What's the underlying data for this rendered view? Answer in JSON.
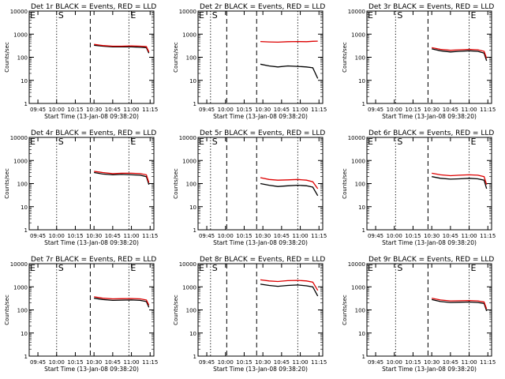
{
  "shared": {
    "ylabel": "Counts/sec",
    "xlabel": "Start Time (13-Jan-08 09:38:20)",
    "x_ticks": [
      "09:45",
      "10:00",
      "10:15",
      "10:30",
      "10:45",
      "11:00",
      "11:15"
    ],
    "y_ticks": [
      "1",
      "10",
      "100",
      "1000",
      "10000"
    ],
    "series_colors": {
      "Events": "#000000",
      "LLD": "#dd0000"
    }
  },
  "chart_data": [
    {
      "type": "line",
      "title": "Det 1r BLACK = Events, RED = LLD",
      "corner_label": "E",
      "markers": [
        {
          "time": "10:00",
          "style": "dotted",
          "label": "S"
        },
        {
          "time": "10:27",
          "style": "dashed",
          "label": ""
        },
        {
          "time": "10:58",
          "style": "dotted",
          "label": "E"
        }
      ],
      "xlim": [
        "09:38",
        "11:18"
      ],
      "ylim": [
        1,
        10000
      ],
      "yscale": "log",
      "series": [
        {
          "name": "Events",
          "color": "#000000",
          "points": [
            [
              "10:30",
              330
            ],
            [
              "10:37",
              300
            ],
            [
              "10:45",
              280
            ],
            [
              "10:52",
              280
            ],
            [
              "11:00",
              280
            ],
            [
              "11:07",
              270
            ],
            [
              "11:12",
              260
            ],
            [
              "11:14",
              150
            ]
          ]
        },
        {
          "name": "LLD",
          "color": "#dd0000",
          "points": [
            [
              "10:30",
              360
            ],
            [
              "10:37",
              320
            ],
            [
              "10:45",
              300
            ],
            [
              "10:52",
              300
            ],
            [
              "11:00",
              310
            ],
            [
              "11:07",
              300
            ],
            [
              "11:12",
              290
            ],
            [
              "11:14",
              170
            ]
          ]
        }
      ]
    },
    {
      "type": "line",
      "title": "Det 2r BLACK = Events, RED = LLD",
      "corner_label": "E",
      "markers": [
        {
          "time": "09:48",
          "style": "dotted",
          "label": "S"
        },
        {
          "time": "10:01",
          "style": "dashed",
          "label": ""
        },
        {
          "time": "10:25",
          "style": "dashed",
          "label": ""
        },
        {
          "time": "10:58",
          "style": "dotted",
          "label": ""
        }
      ],
      "xlim": [
        "09:38",
        "11:18"
      ],
      "ylim": [
        1,
        10000
      ],
      "yscale": "log",
      "series": [
        {
          "name": "Events",
          "color": "#000000",
          "points": [
            [
              "10:28",
              50
            ],
            [
              "10:35",
              42
            ],
            [
              "10:42",
              38
            ],
            [
              "10:50",
              42
            ],
            [
              "10:58",
              40
            ],
            [
              "11:05",
              38
            ],
            [
              "11:10",
              35
            ],
            [
              "11:14",
              12
            ]
          ]
        },
        {
          "name": "LLD",
          "color": "#dd0000",
          "points": [
            [
              "10:28",
              480
            ],
            [
              "10:35",
              460
            ],
            [
              "10:42",
              450
            ],
            [
              "10:50",
              470
            ],
            [
              "10:58",
              480
            ],
            [
              "11:05",
              470
            ],
            [
              "11:10",
              490
            ],
            [
              "11:14",
              500
            ]
          ]
        }
      ]
    },
    {
      "type": "line",
      "title": "Det 3r BLACK = Events, RED = LLD",
      "corner_label": "E",
      "markers": [
        {
          "time": "10:01",
          "style": "dotted",
          "label": "S"
        },
        {
          "time": "10:27",
          "style": "dashed",
          "label": ""
        },
        {
          "time": "11:00",
          "style": "dotted",
          "label": "E"
        }
      ],
      "xlim": [
        "09:38",
        "11:18"
      ],
      "ylim": [
        1,
        10000
      ],
      "yscale": "log",
      "series": [
        {
          "name": "Events",
          "color": "#000000",
          "points": [
            [
              "10:30",
              230
            ],
            [
              "10:37",
              190
            ],
            [
              "10:45",
              170
            ],
            [
              "10:52",
              180
            ],
            [
              "11:00",
              190
            ],
            [
              "11:07",
              180
            ],
            [
              "11:12",
              150
            ],
            [
              "11:14",
              70
            ]
          ]
        },
        {
          "name": "LLD",
          "color": "#dd0000",
          "points": [
            [
              "10:30",
              260
            ],
            [
              "10:37",
              220
            ],
            [
              "10:45",
              200
            ],
            [
              "10:52",
              210
            ],
            [
              "11:00",
              220
            ],
            [
              "11:07",
              210
            ],
            [
              "11:12",
              180
            ],
            [
              "11:14",
              90
            ]
          ]
        }
      ]
    },
    {
      "type": "line",
      "title": "Det 4r BLACK = Events, RED = LLD",
      "corner_label": "E",
      "markers": [
        {
          "time": "10:00",
          "style": "dotted",
          "label": "S"
        },
        {
          "time": "10:27",
          "style": "dashed",
          "label": ""
        },
        {
          "time": "10:58",
          "style": "dotted",
          "label": "E"
        }
      ],
      "xlim": [
        "09:38",
        "11:18"
      ],
      "ylim": [
        1,
        10000
      ],
      "yscale": "log",
      "series": [
        {
          "name": "Events",
          "color": "#000000",
          "points": [
            [
              "10:30",
              300
            ],
            [
              "10:37",
              260
            ],
            [
              "10:45",
              240
            ],
            [
              "10:52",
              250
            ],
            [
              "11:00",
              240
            ],
            [
              "11:07",
              230
            ],
            [
              "11:12",
              200
            ],
            [
              "11:14",
              90
            ]
          ]
        },
        {
          "name": "LLD",
          "color": "#dd0000",
          "points": [
            [
              "10:30",
              340
            ],
            [
              "10:37",
              300
            ],
            [
              "10:45",
              270
            ],
            [
              "10:52",
              280
            ],
            [
              "11:00",
              280
            ],
            [
              "11:07",
              270
            ],
            [
              "11:12",
              240
            ],
            [
              "11:14",
              110
            ]
          ]
        }
      ]
    },
    {
      "type": "line",
      "title": "Det 5r BLACK = Events, RED = LLD",
      "corner_label": "E",
      "markers": [
        {
          "time": "09:48",
          "style": "dotted",
          "label": "S"
        },
        {
          "time": "10:01",
          "style": "dashed",
          "label": ""
        },
        {
          "time": "10:25",
          "style": "dashed",
          "label": ""
        },
        {
          "time": "10:58",
          "style": "dotted",
          "label": ""
        }
      ],
      "xlim": [
        "09:38",
        "11:18"
      ],
      "ylim": [
        1,
        10000
      ],
      "yscale": "log",
      "series": [
        {
          "name": "Events",
          "color": "#000000",
          "points": [
            [
              "10:28",
              100
            ],
            [
              "10:35",
              85
            ],
            [
              "10:42",
              75
            ],
            [
              "10:50",
              80
            ],
            [
              "10:58",
              85
            ],
            [
              "11:05",
              80
            ],
            [
              "11:10",
              70
            ],
            [
              "11:14",
              30
            ]
          ]
        },
        {
          "name": "LLD",
          "color": "#dd0000",
          "points": [
            [
              "10:28",
              180
            ],
            [
              "10:35",
              150
            ],
            [
              "10:42",
              140
            ],
            [
              "10:50",
              145
            ],
            [
              "10:58",
              150
            ],
            [
              "11:05",
              140
            ],
            [
              "11:10",
              120
            ],
            [
              "11:14",
              60
            ]
          ]
        }
      ]
    },
    {
      "type": "line",
      "title": "Det 6r BLACK = Events, RED = LLD",
      "corner_label": "E",
      "markers": [
        {
          "time": "10:01",
          "style": "dotted",
          "label": "S"
        },
        {
          "time": "10:27",
          "style": "dashed",
          "label": ""
        },
        {
          "time": "11:00",
          "style": "dotted",
          "label": "E"
        }
      ],
      "xlim": [
        "09:38",
        "11:18"
      ],
      "ylim": [
        1,
        10000
      ],
      "yscale": "log",
      "series": [
        {
          "name": "Events",
          "color": "#000000",
          "points": [
            [
              "10:30",
              200
            ],
            [
              "10:37",
              170
            ],
            [
              "10:45",
              155
            ],
            [
              "10:52",
              160
            ],
            [
              "11:00",
              170
            ],
            [
              "11:07",
              160
            ],
            [
              "11:12",
              140
            ],
            [
              "11:14",
              60
            ]
          ]
        },
        {
          "name": "LLD",
          "color": "#dd0000",
          "points": [
            [
              "10:30",
              280
            ],
            [
              "10:37",
              240
            ],
            [
              "10:45",
              220
            ],
            [
              "10:52",
              230
            ],
            [
              "11:00",
              240
            ],
            [
              "11:07",
              230
            ],
            [
              "11:12",
              200
            ],
            [
              "11:14",
              90
            ]
          ]
        }
      ]
    },
    {
      "type": "line",
      "title": "Det 7r BLACK = Events, RED = LLD",
      "corner_label": "E",
      "markers": [
        {
          "time": "10:00",
          "style": "dotted",
          "label": "S"
        },
        {
          "time": "10:27",
          "style": "dashed",
          "label": ""
        },
        {
          "time": "10:58",
          "style": "dotted",
          "label": "E"
        }
      ],
      "xlim": [
        "09:38",
        "11:18"
      ],
      "ylim": [
        1,
        10000
      ],
      "yscale": "log",
      "series": [
        {
          "name": "Events",
          "color": "#000000",
          "points": [
            [
              "10:30",
              320
            ],
            [
              "10:37",
              280
            ],
            [
              "10:45",
              260
            ],
            [
              "10:52",
              265
            ],
            [
              "11:00",
              270
            ],
            [
              "11:07",
              260
            ],
            [
              "11:12",
              230
            ],
            [
              "11:14",
              130
            ]
          ]
        },
        {
          "name": "LLD",
          "color": "#dd0000",
          "points": [
            [
              "10:30",
              370
            ],
            [
              "10:37",
              320
            ],
            [
              "10:45",
              300
            ],
            [
              "10:52",
              305
            ],
            [
              "11:00",
              310
            ],
            [
              "11:07",
              300
            ],
            [
              "11:12",
              270
            ],
            [
              "11:14",
              160
            ]
          ]
        }
      ]
    },
    {
      "type": "line",
      "title": "Det 8r BLACK = Events, RED = LLD",
      "corner_label": "E",
      "markers": [
        {
          "time": "09:48",
          "style": "dotted",
          "label": "S"
        },
        {
          "time": "10:01",
          "style": "dashed",
          "label": ""
        },
        {
          "time": "10:25",
          "style": "dashed",
          "label": ""
        },
        {
          "time": "10:58",
          "style": "dotted",
          "label": ""
        }
      ],
      "xlim": [
        "09:38",
        "11:18"
      ],
      "ylim": [
        1,
        10000
      ],
      "yscale": "log",
      "series": [
        {
          "name": "Events",
          "color": "#000000",
          "points": [
            [
              "10:28",
              1300
            ],
            [
              "10:35",
              1150
            ],
            [
              "10:42",
              1050
            ],
            [
              "10:50",
              1150
            ],
            [
              "10:58",
              1200
            ],
            [
              "11:05",
              1100
            ],
            [
              "11:10",
              1000
            ],
            [
              "11:14",
              400
            ]
          ]
        },
        {
          "name": "LLD",
          "color": "#dd0000",
          "points": [
            [
              "10:28",
              2000
            ],
            [
              "10:35",
              1800
            ],
            [
              "10:42",
              1700
            ],
            [
              "10:50",
              1850
            ],
            [
              "10:58",
              1900
            ],
            [
              "11:05",
              1800
            ],
            [
              "11:10",
              1600
            ],
            [
              "11:14",
              700
            ]
          ]
        }
      ]
    },
    {
      "type": "line",
      "title": "Det 9r BLACK = Events, RED = LLD",
      "corner_label": "E",
      "markers": [
        {
          "time": "10:01",
          "style": "dotted",
          "label": "S"
        },
        {
          "time": "10:27",
          "style": "dashed",
          "label": ""
        },
        {
          "time": "11:00",
          "style": "dotted",
          "label": "E"
        }
      ],
      "xlim": [
        "09:38",
        "11:18"
      ],
      "ylim": [
        1,
        10000
      ],
      "yscale": "log",
      "series": [
        {
          "name": "Events",
          "color": "#000000",
          "points": [
            [
              "10:30",
              280
            ],
            [
              "10:37",
              230
            ],
            [
              "10:45",
              210
            ],
            [
              "10:52",
              215
            ],
            [
              "11:00",
              220
            ],
            [
              "11:07",
              210
            ],
            [
              "11:12",
              190
            ],
            [
              "11:14",
              90
            ]
          ]
        },
        {
          "name": "LLD",
          "color": "#dd0000",
          "points": [
            [
              "10:30",
              320
            ],
            [
              "10:37",
              270
            ],
            [
              "10:45",
              245
            ],
            [
              "10:52",
              250
            ],
            [
              "11:00",
              255
            ],
            [
              "11:07",
              245
            ],
            [
              "11:12",
              220
            ],
            [
              "11:14",
              110
            ]
          ]
        }
      ]
    }
  ]
}
